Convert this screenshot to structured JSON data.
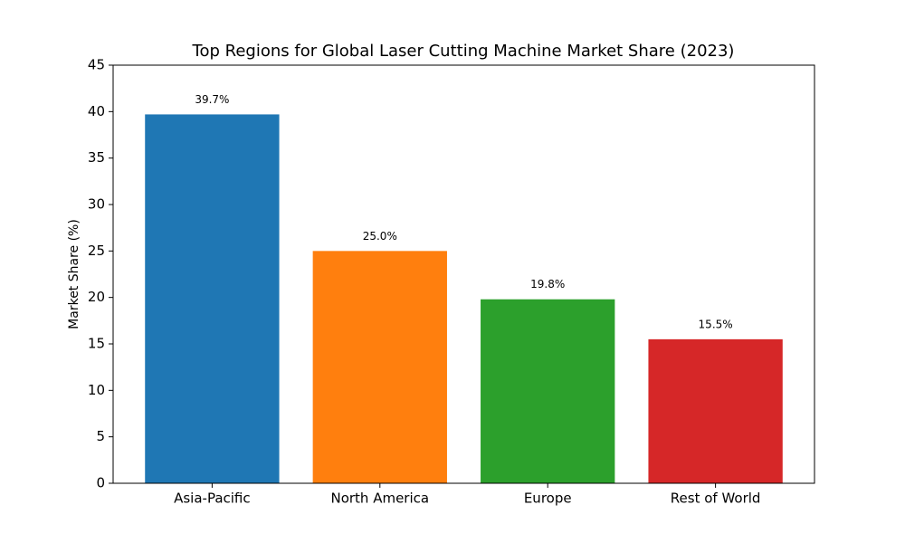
{
  "chart_data": {
    "type": "bar",
    "title": "Top Regions for Global Laser Cutting Machine Market Share (2023)",
    "y_label": "Market Share (%)",
    "categories": [
      "Asia-Pacific",
      "North America",
      "Europe",
      "Rest of World"
    ],
    "values": [
      39.7,
      25.0,
      19.8,
      15.5
    ],
    "value_labels": [
      "39.7%",
      "25.0%",
      "19.8%",
      "15.5%"
    ],
    "colors": [
      "#1f77b4",
      "#ff7f0e",
      "#2ca02c",
      "#d62728"
    ],
    "ylim": [
      0,
      45
    ],
    "yticks": [
      0,
      5,
      10,
      15,
      20,
      25,
      30,
      35,
      40,
      45
    ],
    "grid": false
  }
}
